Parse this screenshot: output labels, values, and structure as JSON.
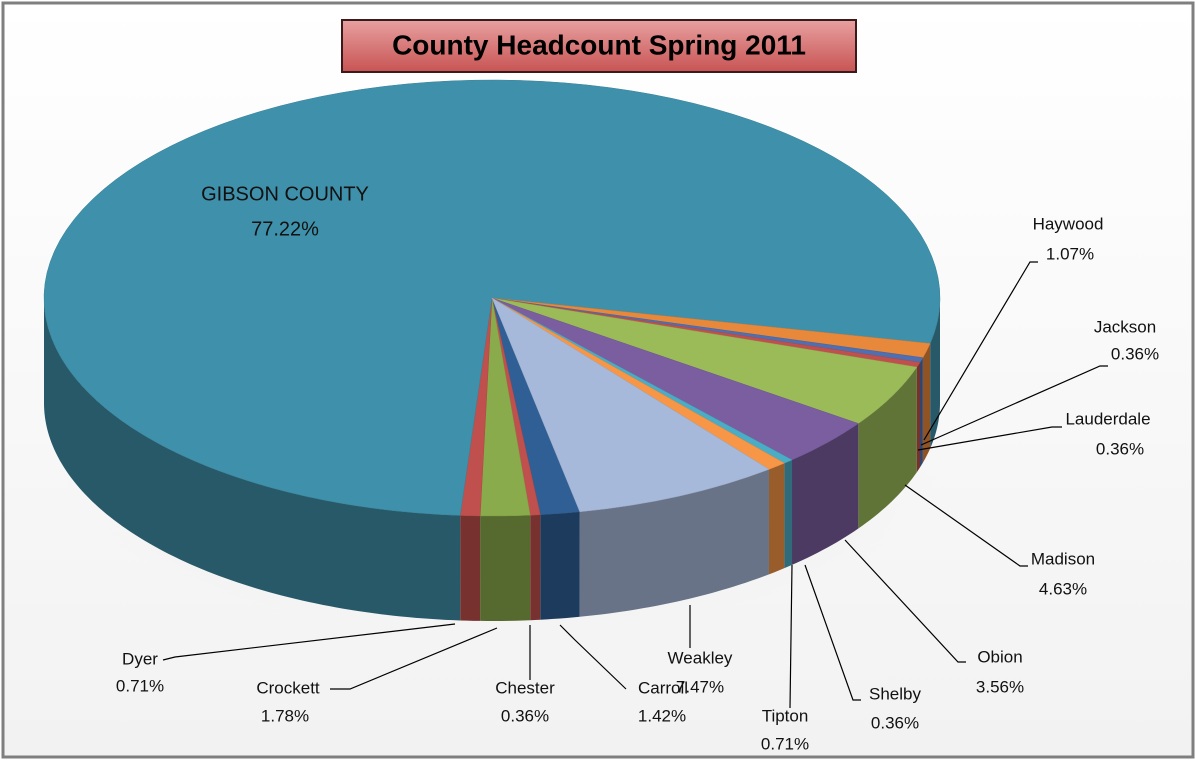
{
  "chart_data": {
    "type": "pie",
    "title": "County Headcount Spring 2011",
    "categories": [
      "Carroll",
      "Chester",
      "Crockett",
      "Dyer",
      "GIBSON COUNTY",
      "Haywood",
      "Jackson",
      "Lauderdale",
      "Madison",
      "Obion",
      "Shelby",
      "Tipton",
      "Weakley"
    ],
    "values": [
      1.42,
      0.36,
      1.78,
      0.71,
      77.22,
      1.07,
      0.36,
      0.36,
      4.63,
      3.56,
      0.36,
      0.71,
      7.47
    ],
    "value_labels": [
      "1.42%",
      "0.36%",
      "1.78%",
      "0.71%",
      "77.22%",
      "1.07%",
      "0.36%",
      "0.36%",
      "4.63%",
      "3.56%",
      "0.36%",
      "0.71%",
      "7.47%"
    ],
    "colors": [
      "#2f5f94",
      "#c0504d",
      "#8aab4c",
      "#c0504d",
      "#3f90aa",
      "#e8883a",
      "#4f6fb0",
      "#c0504d",
      "#9bbb59",
      "#7a5ea0",
      "#4bacc6",
      "#f79646",
      "#a7b9da"
    ]
  }
}
